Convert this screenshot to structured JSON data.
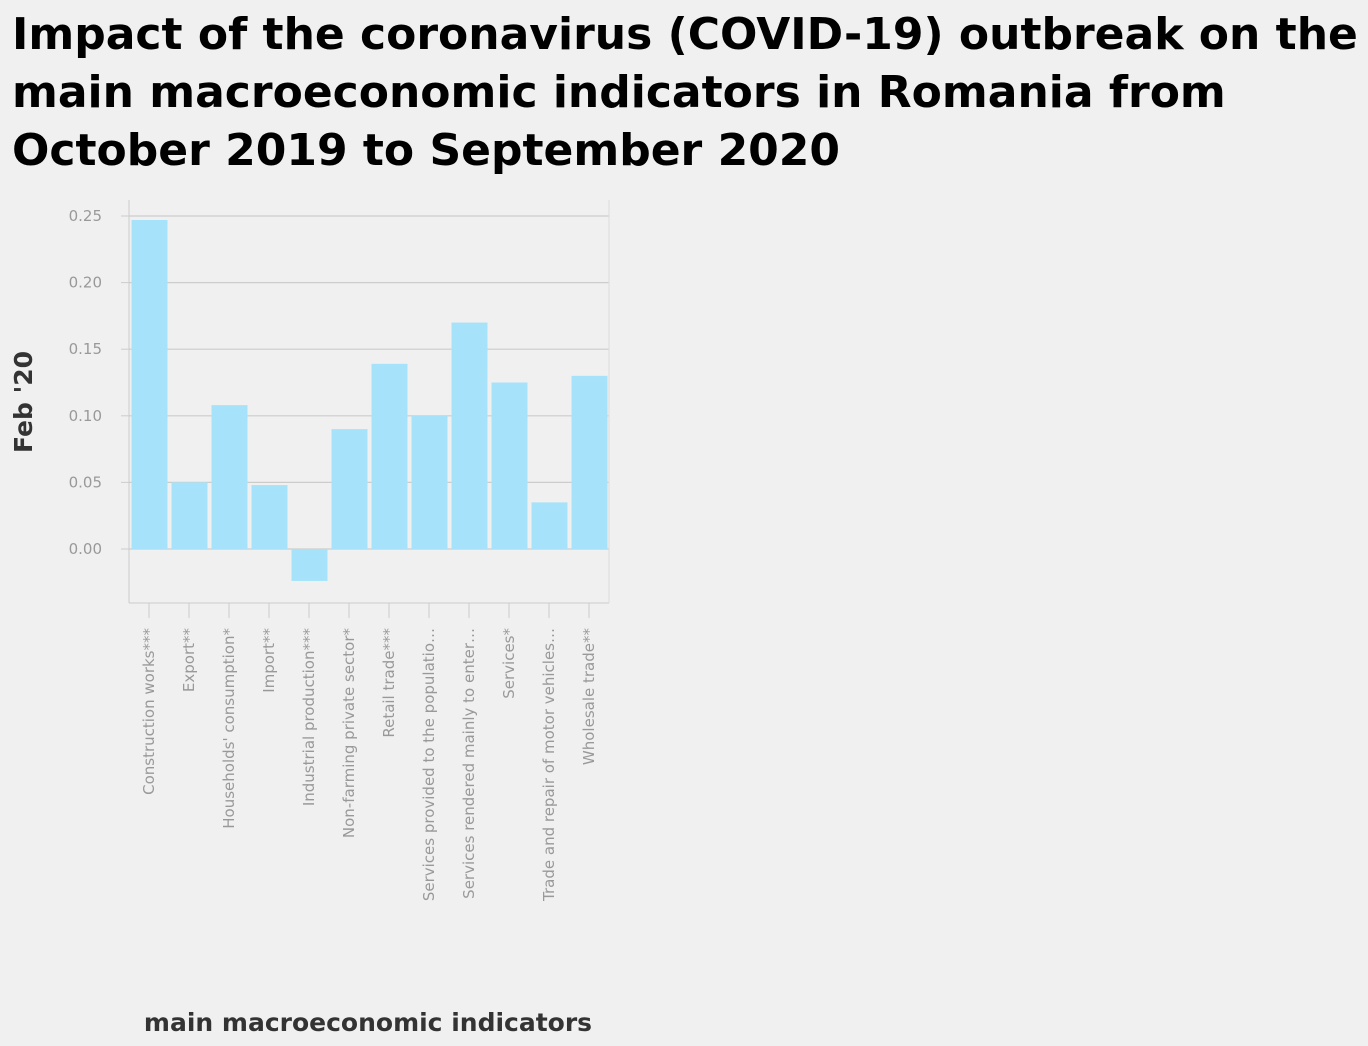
{
  "chart_data": {
    "type": "bar",
    "title": "Impact of the coronavirus (COVID-19) outbreak on the main macroeconomic indicators in Romania from October 2019 to September 2020",
    "xlabel": "main macroeconomic indicators",
    "ylabel": "Feb '20",
    "categories": [
      "Construction works***",
      "Export**",
      "Households' consumption*",
      "Import**",
      "Industrial production***",
      "Non-farming private sector*",
      "Retail trade***",
      "Services provided to the populatio…",
      "Services rendered mainly to enter…",
      "Services*",
      "Trade and repair of motor vehicles…",
      "Wholesale trade**"
    ],
    "values": [
      0.247,
      0.05,
      0.108,
      0.048,
      -0.024,
      0.09,
      0.139,
      0.1,
      0.17,
      0.125,
      0.035,
      0.13
    ],
    "ylim": [
      -0.04,
      0.26
    ],
    "yticks": [
      "0.00",
      "0.05",
      "0.10",
      "0.15",
      "0.20",
      "0.25"
    ],
    "grid": true,
    "bar_color": "#a6e3fa",
    "grid_color": "#cccccc",
    "tick_color": "#999999"
  }
}
